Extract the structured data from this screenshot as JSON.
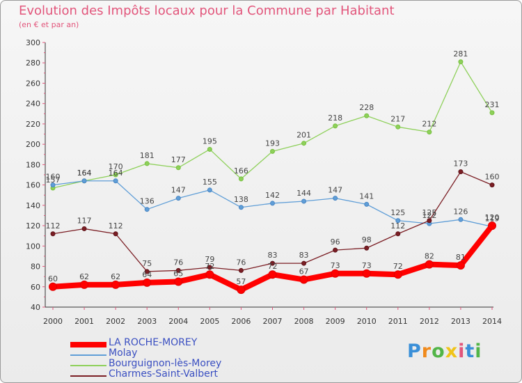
{
  "chart_data": {
    "type": "line",
    "title": "Evolution des Impôts locaux pour la Commune par Habitant",
    "subtitle": "(en € et par an)",
    "xlabel": "",
    "ylabel": "",
    "x": [
      "2000",
      "2001",
      "2002",
      "2003",
      "2004",
      "2005",
      "2006",
      "2007",
      "2008",
      "2009",
      "2010",
      "2011",
      "2012",
      "2013",
      "2014"
    ],
    "ylim": [
      40,
      300
    ],
    "yticks": [
      40,
      60,
      80,
      100,
      120,
      140,
      160,
      180,
      200,
      220,
      240,
      260,
      280,
      300
    ],
    "series": [
      {
        "name": "LA ROCHE-MOREY",
        "color": "#ff0000",
        "marker": "#e00000",
        "width": 8,
        "values": [
          60,
          62,
          62,
          64,
          65,
          72,
          57,
          72,
          67,
          73,
          73,
          72,
          82,
          81,
          120
        ],
        "labels": [
          "60",
          "62",
          "62",
          "64",
          "65",
          "72",
          "57",
          "72",
          "67",
          "73",
          "73",
          "72",
          "82",
          "81",
          "120"
        ]
      },
      {
        "name": "Molay",
        "color": "#5f9ed7",
        "marker": "#4a86c4",
        "width": 1.3,
        "values": [
          160,
          164,
          164,
          136,
          147,
          155,
          138,
          142,
          144,
          147,
          141,
          125,
          122,
          126,
          119
        ],
        "labels": [
          "160",
          "164",
          "164",
          "136",
          "147",
          "155",
          "138",
          "142",
          "144",
          "147",
          "141",
          "125",
          "122",
          "126",
          "119"
        ]
      },
      {
        "name": "Bourguignon-lès-Morey",
        "color": "#8ed05a",
        "marker": "#77c13f",
        "width": 1.3,
        "values": [
          157,
          164,
          170,
          181,
          177,
          195,
          166,
          193,
          201,
          218,
          228,
          217,
          212,
          281,
          231
        ],
        "labels": [
          "157",
          "164",
          "170",
          "181",
          "177",
          "195",
          "166",
          "193",
          "201",
          "218",
          "228",
          "217",
          "212",
          "281",
          "231"
        ]
      },
      {
        "name": "Charmes-Saint-Valbert",
        "color": "#7b1e24",
        "marker": "#5e1218",
        "width": 1.3,
        "values": [
          112,
          117,
          112,
          75,
          76,
          79,
          76,
          83,
          83,
          96,
          98,
          112,
          125,
          173,
          160
        ],
        "labels": [
          "112",
          "117",
          "112",
          "75",
          "76",
          "79",
          "76",
          "83",
          "83",
          "96",
          "98",
          "112",
          "125",
          "173",
          "160"
        ]
      }
    ],
    "legend": "bottom-left",
    "grid": false
  },
  "logo": {
    "letters": [
      "P",
      "r",
      "o",
      "x",
      "i",
      "t",
      "i"
    ],
    "colors": [
      "#3a8fd8",
      "#f08a1c",
      "#52b548",
      "#f0c419",
      "#e2557b",
      "#3a8fd8",
      "#52b548"
    ]
  }
}
